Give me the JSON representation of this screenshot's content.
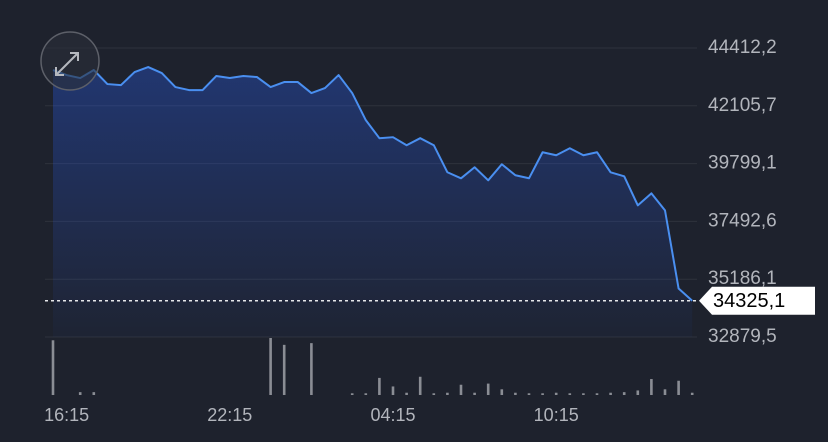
{
  "chart_data": {
    "type": "line",
    "categories": [
      null,
      "16:15",
      null,
      null,
      null,
      null,
      null,
      null,
      null,
      null,
      null,
      null,
      null,
      "22:15",
      null,
      null,
      null,
      null,
      null,
      null,
      null,
      null,
      null,
      null,
      null,
      "04:15",
      null,
      null,
      null,
      null,
      null,
      null,
      null,
      null,
      null,
      null,
      null,
      "10:15",
      null,
      null,
      null,
      null,
      null,
      null,
      null,
      null,
      null,
      null
    ],
    "values": [
      43533,
      43333,
      43213,
      43533,
      42973,
      42933,
      43453,
      43653,
      43413,
      42853,
      42733,
      42733,
      43293,
      43213,
      43293,
      43253,
      42853,
      43053,
      43053,
      42613,
      42813,
      43333,
      42613,
      41533,
      40813,
      40853,
      40533,
      40813,
      40533,
      39453,
      39213,
      39653,
      39133,
      39773,
      39333,
      39213,
      40253,
      40133,
      40413,
      40133,
      40253,
      39453,
      39293,
      38133,
      38613,
      37933,
      34813,
      34325.1
    ],
    "color": "#4a8ff0",
    "ylim": [
      32879.5,
      46327.6
    ],
    "yticks": [
      {
        "value": 44412.2,
        "label": "44412,2"
      },
      {
        "value": 42105.7,
        "label": "42105,7"
      },
      {
        "value": 39799.1,
        "label": "39799,1"
      },
      {
        "value": 37492.6,
        "label": "37492,6"
      },
      {
        "value": 35186.1,
        "label": "35186,1"
      },
      {
        "value": 32879.5,
        "label": "32879,5"
      }
    ],
    "grid": true,
    "last_price": {
      "value": 34325.1,
      "label": "34325,1"
    },
    "volume": {
      "color": "#8a8d94",
      "ylim": [
        0,
        100
      ],
      "values": [
        96,
        0,
        5,
        5,
        0,
        0,
        0,
        0,
        0,
        0,
        0,
        0,
        0,
        0,
        0,
        0,
        100,
        88,
        0,
        91,
        0,
        0,
        3,
        3,
        30,
        15,
        4,
        32,
        3,
        4,
        18,
        4,
        20,
        10,
        4,
        3,
        3,
        4,
        3,
        3,
        3,
        4,
        5,
        8,
        28,
        10,
        25,
        4
      ]
    }
  }
}
